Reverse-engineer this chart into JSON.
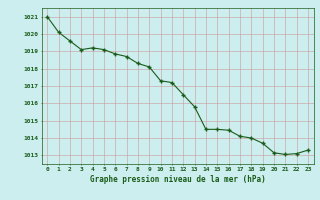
{
  "x": [
    0,
    1,
    2,
    3,
    4,
    5,
    6,
    7,
    8,
    9,
    10,
    11,
    12,
    13,
    14,
    15,
    16,
    17,
    18,
    19,
    20,
    21,
    22,
    23
  ],
  "y": [
    1021.0,
    1020.1,
    1019.6,
    1019.1,
    1019.2,
    1019.1,
    1018.85,
    1018.7,
    1018.3,
    1018.1,
    1017.3,
    1017.2,
    1016.5,
    1015.8,
    1014.5,
    1014.5,
    1014.45,
    1014.1,
    1014.0,
    1013.7,
    1013.15,
    1013.05,
    1013.1,
    1013.3
  ],
  "line_color": "#1a5c1a",
  "marker_color": "#1a5c1a",
  "bg_color": "#cceeee",
  "grid_color_major": "#bbbbcc",
  "grid_color_minor": "#ddddee",
  "xlabel": "Graphe pression niveau de la mer (hPa)",
  "xlabel_color": "#1a5c1a",
  "tick_color": "#1a5c1a",
  "axis_color": "#1a5c1a",
  "ylim": [
    1012.5,
    1021.5
  ],
  "yticks": [
    1013,
    1014,
    1015,
    1016,
    1017,
    1018,
    1019,
    1020,
    1021
  ],
  "xticks": [
    0,
    1,
    2,
    3,
    4,
    5,
    6,
    7,
    8,
    9,
    10,
    11,
    12,
    13,
    14,
    15,
    16,
    17,
    18,
    19,
    20,
    21,
    22,
    23
  ],
  "figsize": [
    3.2,
    2.0
  ],
  "dpi": 100
}
